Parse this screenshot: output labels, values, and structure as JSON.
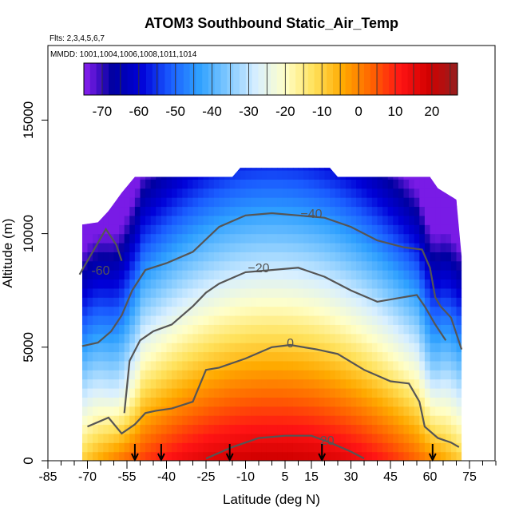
{
  "chart_data": {
    "type": "heatmap",
    "title": "ATOM3 Southbound Static_Air_Temp",
    "subtitle_flights": "Flts: 2,3,4,5,6,7",
    "subtitle_dates": "MMDD: 1001,1004,1006,1008,1011,1014",
    "xlabel": "Latitude (deg N)",
    "ylabel": "Altitude (m)",
    "xlim": [
      -85,
      85
    ],
    "ylim": [
      0,
      17500
    ],
    "x_ticks": [
      -85,
      -70,
      -55,
      -40,
      -25,
      -10,
      5,
      15,
      30,
      45,
      60,
      75
    ],
    "x_tick_labels": [
      "-85",
      "-70",
      "-55",
      "-40",
      "-25",
      "-10",
      "5",
      "15",
      "30",
      "45",
      "60",
      "75"
    ],
    "y_ticks": [
      0,
      5000,
      10000,
      15000
    ],
    "y_tick_labels": [
      "0",
      "5000",
      "10000",
      "15000"
    ],
    "colorbar": {
      "min": -75,
      "max": 27,
      "ticks": [
        -70,
        -60,
        -50,
        -40,
        -30,
        -20,
        -10,
        0,
        10,
        20
      ],
      "tick_labels": [
        "-70",
        "-60",
        "-50",
        "-40",
        "-30",
        "-20",
        "-10",
        "0",
        "10",
        "20"
      ],
      "colors": [
        "#8b1ff0",
        "#0000a0",
        "#0000d8",
        "#1a5cff",
        "#2ea0ff",
        "#7fc8ff",
        "#d8efff",
        "#ffffc8",
        "#ffe15a",
        "#ffaa00",
        "#ff6400",
        "#ff1414",
        "#d20000",
        "#961e1e"
      ]
    },
    "data_extent": [
      {
        "lat": -72,
        "top": 10400
      },
      {
        "lat": -66,
        "top": 10500
      },
      {
        "lat": -62,
        "top": 11000
      },
      {
        "lat": -57,
        "top": 11800
      },
      {
        "lat": -52,
        "top": 12500
      },
      {
        "lat": -40,
        "top": 12500
      },
      {
        "lat": -25,
        "top": 12500
      },
      {
        "lat": -15,
        "top": 12500
      },
      {
        "lat": -12,
        "top": 12900
      },
      {
        "lat": 22,
        "top": 12900
      },
      {
        "lat": 25,
        "top": 12500
      },
      {
        "lat": 60,
        "top": 12500
      },
      {
        "lat": 63,
        "top": 12000
      },
      {
        "lat": 70,
        "top": 11500
      },
      {
        "lat": 72,
        "top": 9000
      }
    ],
    "contours": [
      {
        "level": -60,
        "label": "-60",
        "label_at": [
          -65,
          8300
        ],
        "points": [
          [
            -73,
            8200
          ],
          [
            -68,
            9200
          ],
          [
            -63,
            10200
          ],
          [
            -59,
            9500
          ],
          [
            -57,
            8800
          ]
        ]
      },
      {
        "level": -40,
        "label": "−40",
        "label_at": [
          15,
          10800
        ],
        "points": [
          [
            -72,
            5050
          ],
          [
            -66,
            5200
          ],
          [
            -61,
            5700
          ],
          [
            -57,
            6400
          ],
          [
            -53,
            7500
          ],
          [
            -48,
            8400
          ],
          [
            -40,
            8700
          ],
          [
            -30,
            9200
          ],
          [
            -20,
            10300
          ],
          [
            -10,
            10800
          ],
          [
            0,
            10900
          ],
          [
            10,
            10800
          ],
          [
            20,
            10700
          ],
          [
            30,
            10300
          ],
          [
            40,
            9700
          ],
          [
            50,
            9400
          ],
          [
            57,
            9300
          ],
          [
            60,
            8500
          ],
          [
            62,
            7200
          ],
          [
            64,
            6800
          ],
          [
            68,
            6300
          ],
          [
            72,
            4900
          ]
        ]
      },
      {
        "level": -20,
        "label": "−20",
        "label_at": [
          -5,
          8400
        ],
        "points": [
          [
            -56,
            2100
          ],
          [
            -54,
            4400
          ],
          [
            -50,
            5300
          ],
          [
            -45,
            5700
          ],
          [
            -38,
            6000
          ],
          [
            -30,
            6800
          ],
          [
            -25,
            7400
          ],
          [
            -20,
            7800
          ],
          [
            -10,
            8300
          ],
          [
            0,
            8400
          ],
          [
            10,
            8500
          ],
          [
            20,
            8100
          ],
          [
            30,
            7500
          ],
          [
            40,
            7000
          ],
          [
            50,
            7200
          ],
          [
            55,
            7300
          ],
          [
            58,
            6800
          ],
          [
            62,
            6000
          ],
          [
            66,
            5300
          ]
        ]
      },
      {
        "level": 0,
        "label": "0",
        "label_at": [
          7,
          5100
        ],
        "points": [
          [
            -70,
            1500
          ],
          [
            -62,
            1900
          ],
          [
            -57,
            1200
          ],
          [
            -52,
            1600
          ],
          [
            -48,
            2100
          ],
          [
            -44,
            2200
          ],
          [
            -38,
            2300
          ],
          [
            -30,
            2600
          ],
          [
            -25,
            4000
          ],
          [
            -20,
            4100
          ],
          [
            -10,
            4500
          ],
          [
            0,
            5000
          ],
          [
            7,
            5100
          ],
          [
            17,
            4900
          ],
          [
            25,
            4700
          ],
          [
            35,
            4000
          ],
          [
            45,
            3500
          ],
          [
            52,
            3400
          ],
          [
            56,
            2600
          ],
          [
            58,
            1500
          ],
          [
            63,
            1000
          ],
          [
            68,
            800
          ],
          [
            71,
            600
          ]
        ]
      },
      {
        "level": 20,
        "label": "20",
        "label_at": [
          21,
          800
        ],
        "points": [
          [
            -25,
            100
          ],
          [
            -15,
            600
          ],
          [
            -5,
            1000
          ],
          [
            5,
            1100
          ],
          [
            15,
            1100
          ],
          [
            22,
            800
          ],
          [
            30,
            400
          ],
          [
            35,
            100
          ]
        ]
      }
    ],
    "flight_markers": [
      -52,
      -42,
      -16,
      19,
      61
    ]
  }
}
